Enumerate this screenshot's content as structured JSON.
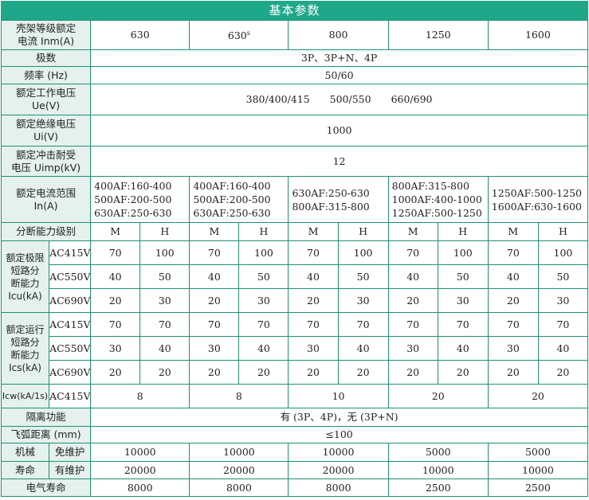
{
  "title": "基本参数",
  "frame": {
    "label": [
      "壳架等级额定",
      "电流 Inm(A)"
    ],
    "values": [
      "630",
      "630",
      "800",
      "1250",
      "1600"
    ],
    "sup": "s"
  },
  "poles": {
    "label": "极数",
    "value": "3P、3P+N、4P"
  },
  "freq": {
    "label": "频率 (Hz)",
    "value": "50/60"
  },
  "ue": {
    "label": [
      "额定工作电压",
      "Ue(V)"
    ],
    "value": "380/400/415　　500/550　　660/690"
  },
  "ui": {
    "label": [
      "额定绝缘电压",
      "Ui(V)"
    ],
    "value": "1000"
  },
  "uimp": {
    "label": [
      "额定冲击耐受",
      "电压 Uimp(kV)"
    ],
    "value": "12"
  },
  "inrange": {
    "label": [
      "额定电流范围",
      "In(A)"
    ],
    "cells": [
      [
        "400AF:160-400",
        "500AF:200-500",
        "630AF:250-630"
      ],
      [
        "400AF:160-400",
        "500AF:200-500",
        "630AF:250-630"
      ],
      [
        "630AF:250-630",
        "800AF:315-800"
      ],
      [
        "800AF:315-800",
        "1000AF:400-1000",
        "1250AF:500-1250"
      ],
      [
        "1250AF:500-1250",
        "1600AF:630-1600"
      ]
    ]
  },
  "breaking": {
    "label": "分断能力级别",
    "levels": [
      "M",
      "H",
      "M",
      "H",
      "M",
      "H",
      "M",
      "H",
      "M",
      "H"
    ]
  },
  "icu": {
    "label": [
      "额定极限",
      "短路分",
      "断能力",
      "Icu(kA)"
    ],
    "rows": [
      {
        "v": "AC415V",
        "vals": [
          "70",
          "100",
          "70",
          "100",
          "70",
          "100",
          "70",
          "100",
          "70",
          "100"
        ]
      },
      {
        "v": "AC550V",
        "vals": [
          "40",
          "50",
          "40",
          "50",
          "40",
          "50",
          "40",
          "50",
          "40",
          "50"
        ]
      },
      {
        "v": "AC690V",
        "vals": [
          "20",
          "30",
          "20",
          "30",
          "20",
          "30",
          "20",
          "30",
          "20",
          "30"
        ]
      }
    ]
  },
  "ics": {
    "label": [
      "额定运行",
      "短路分",
      "断能力",
      "Ics(kA)"
    ],
    "rows": [
      {
        "v": "AC415V",
        "vals": [
          "70",
          "70",
          "70",
          "70",
          "70",
          "70",
          "70",
          "70",
          "70",
          "70"
        ]
      },
      {
        "v": "AC550V",
        "vals": [
          "30",
          "40",
          "30",
          "40",
          "30",
          "40",
          "30",
          "40",
          "30",
          "40"
        ]
      },
      {
        "v": "AC690V",
        "vals": [
          "20",
          "20",
          "20",
          "20",
          "20",
          "20",
          "20",
          "20",
          "20",
          "20"
        ]
      }
    ]
  },
  "icw": {
    "label": "Icw(kA/1s)",
    "v": "AC415V",
    "vals": [
      "8",
      "8",
      "10",
      "20",
      "20"
    ]
  },
  "isolation": {
    "label": "隔离功能",
    "value": "有 (3P、4P)，无 (3P+N)"
  },
  "arc": {
    "label": "飞弧距离 (mm)",
    "value": "≤100"
  },
  "mech": {
    "label": [
      "机械",
      "寿命"
    ],
    "rows": [
      {
        "sub": "免维护",
        "vals": [
          "10000",
          "10000",
          "10000",
          "5000",
          "5000"
        ]
      },
      {
        "sub": "有维护",
        "vals": [
          "20000",
          "20000",
          "20000",
          "10000",
          "10000"
        ]
      }
    ]
  },
  "elec": {
    "label": "电气寿命",
    "vals": [
      "8000",
      "8000",
      "8000",
      "2500",
      "2500"
    ]
  }
}
